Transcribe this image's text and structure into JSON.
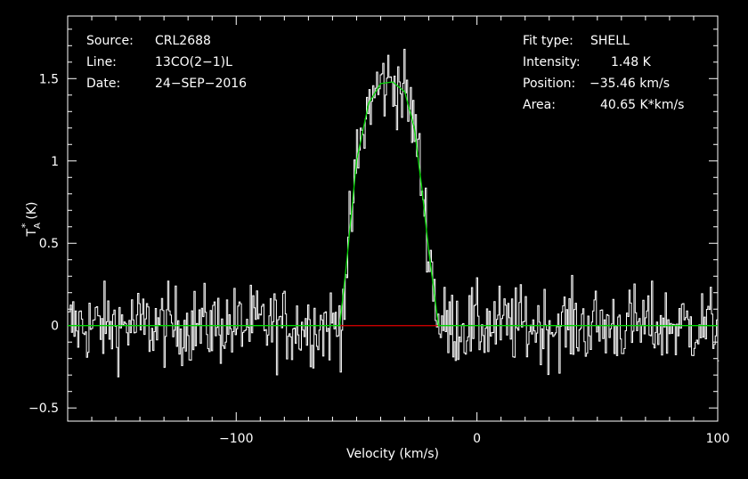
{
  "chart_data": {
    "type": "line",
    "xlabel": "Velocity (km/s)",
    "ylabel": "T",
    "ylabel_sub": "A",
    "ylabel_sup": "*",
    "ylabel_unit": "(K)",
    "xlim": [
      -170,
      100
    ],
    "ylim": [
      -0.58,
      1.88
    ],
    "xticks": [
      -100,
      0,
      100
    ],
    "xtick_labels": [
      "−100",
      "0",
      "100"
    ],
    "yticks": [
      -0.5,
      0,
      0.5,
      1,
      1.5
    ],
    "ytick_labels": [
      "−0.5",
      "0",
      "0.5",
      "1",
      "1.5"
    ],
    "grid": false,
    "info_left": [
      {
        "key": "Source:",
        "value": "CRL2688"
      },
      {
        "key": "Line:",
        "value": "13CO(2−1)L"
      },
      {
        "key": "Date:",
        "value": "24−SEP−2016"
      }
    ],
    "info_right": [
      {
        "key": "Fit type:",
        "value": "SHELL"
      },
      {
        "key": "Intensity:",
        "value": "1.48 K"
      },
      {
        "key": "Position:",
        "value": "−35.46 km/s"
      },
      {
        "key": "Area:",
        "value": "40.65 K*km/s"
      }
    ],
    "fit": {
      "type": "SHELL",
      "intensity": 1.48,
      "position": -35.46,
      "area": 40.65,
      "x": [
        -170,
        -57,
        -54,
        -50,
        -45,
        -40,
        -35,
        -30,
        -26,
        -23,
        -20,
        -16,
        100
      ],
      "y": [
        0,
        0,
        0.4,
        1.0,
        1.35,
        1.47,
        1.48,
        1.42,
        1.2,
        0.85,
        0.45,
        0,
        0
      ]
    },
    "baseline_segment": {
      "x": [
        -57,
        -16
      ],
      "y": [
        0,
        0
      ]
    },
    "spectrum": {
      "x_start": -170,
      "x_end": 100,
      "n_channels": 520,
      "noise_rms": 0.12
    },
    "colors": {
      "background": "#000000",
      "axes": "#ffffff",
      "spectrum": "#ffffff",
      "fit": "#00d800",
      "baseline": "#e00000"
    }
  }
}
